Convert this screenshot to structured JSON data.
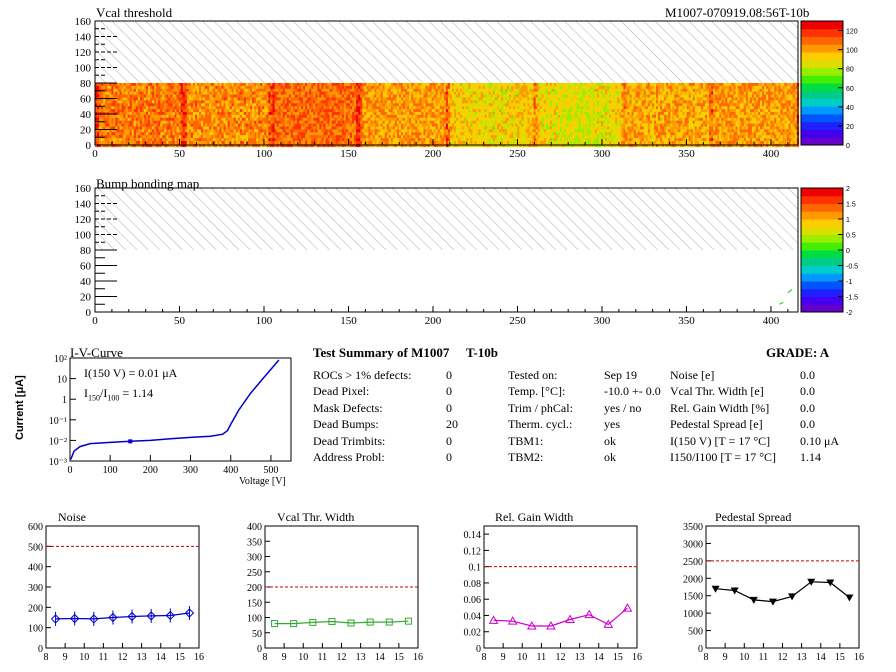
{
  "header": {
    "run_id": "M1007-070919.08:56T-10b"
  },
  "maps": {
    "vcal": {
      "title": "Vcal threshold",
      "x_ticks": [
        "0",
        "50",
        "100",
        "150",
        "200",
        "250",
        "300",
        "350",
        "400"
      ],
      "y_ticks": [
        "0",
        "20",
        "40",
        "60",
        "80",
        "100",
        "120",
        "140",
        "160"
      ],
      "xlim": [
        0,
        416
      ],
      "ylim": [
        0,
        160
      ],
      "active_rows": [
        0,
        80
      ],
      "palette_ticks": [
        "0",
        "20",
        "40",
        "60",
        "80",
        "100",
        "120"
      ],
      "palette_range": [
        0,
        130
      ]
    },
    "bump": {
      "title": "Bump bonding map",
      "x_ticks": [
        "0",
        "50",
        "100",
        "150",
        "200",
        "250",
        "300",
        "350",
        "400"
      ],
      "y_ticks": [
        "0",
        "20",
        "40",
        "60",
        "80",
        "100",
        "120",
        "140",
        "160"
      ],
      "xlim": [
        0,
        416
      ],
      "ylim": [
        0,
        160
      ],
      "palette_ticks": [
        "-2",
        "-1.5",
        "-1",
        "-0.5",
        "0",
        "0.5",
        "1",
        "1.5",
        "2"
      ],
      "palette_range": [
        -2,
        2
      ]
    }
  },
  "iv": {
    "title": "I-V-Curve",
    "ylabel": "Current [μA]",
    "xlabel": "Voltage [V]",
    "annot1": "I(150 V) = 0.01 μA",
    "annot2_main": "I",
    "annot2_sub1": "150",
    "annot2_mid": "/I",
    "annot2_sub2": "100",
    "annot2_val": " =  1.14",
    "x_ticks": [
      "0",
      "100",
      "200",
      "300",
      "400",
      "500"
    ],
    "y_ticks": [
      "10⁻³",
      "10⁻²",
      "10⁻¹",
      "1",
      "10",
      "10²"
    ]
  },
  "summary": {
    "title": "Test Summary of M1007",
    "module": "T-10b",
    "grade": "GRADE:  A",
    "left": [
      {
        "label": "ROCs > 1% defects:",
        "value": "0"
      },
      {
        "label": "Dead Pixel:",
        "value": "0"
      },
      {
        "label": "Mask Defects:",
        "value": "0"
      },
      {
        "label": "Dead Bumps:",
        "value": "20"
      },
      {
        "label": "Dead Trimbits:",
        "value": "0"
      },
      {
        "label": "Address Probl:",
        "value": "0"
      }
    ],
    "middle": [
      {
        "label": "Tested on:",
        "value": "Sep 19"
      },
      {
        "label": "Temp. [°C]:",
        "value": "-10.0 +- 0.0"
      },
      {
        "label": "Trim / phCal:",
        "value": "yes / no"
      },
      {
        "label": "Therm. cycl.:",
        "value": "yes"
      },
      {
        "label": "TBM1:",
        "value": "ok"
      },
      {
        "label": "TBM2:",
        "value": "ok"
      }
    ],
    "right": [
      {
        "label": "Noise [e]",
        "value": "0.0"
      },
      {
        "label": "Vcal Thr. Width [e]",
        "value": "0.0"
      },
      {
        "label": "Rel. Gain Width [%]",
        "value": "0.0"
      },
      {
        "label": "Pedestal Spread [e]",
        "value": "0.0"
      },
      {
        "label": "I(150 V) [T = 17 °C]",
        "value": "0.10 μA"
      },
      {
        "label": "I150/I100   [T = 17 °C]",
        "value": "1.14"
      }
    ]
  },
  "chart_data": [
    {
      "type": "heatmap",
      "title": "Vcal threshold",
      "x_range": [
        0,
        416
      ],
      "y_range": [
        0,
        160
      ],
      "filled_rows": [
        0,
        80
      ],
      "value_range": [
        0,
        130
      ],
      "typical_value": 100,
      "roc_boundaries": [
        52,
        104,
        156,
        208,
        260,
        312,
        364
      ]
    },
    {
      "type": "heatmap",
      "title": "Bump bonding map",
      "x_range": [
        0,
        416
      ],
      "y_range": [
        0,
        160
      ],
      "filled_rows": [
        0,
        80
      ],
      "value_range": [
        -2,
        2
      ]
    },
    {
      "type": "line",
      "title": "I-V-Curve",
      "xlabel": "Voltage [V]",
      "ylabel": "Current [μA]",
      "xlim": [
        0,
        550
      ],
      "y_log": true,
      "ylim": [
        0.001,
        100
      ],
      "x": [
        2,
        10,
        25,
        50,
        100,
        150,
        200,
        250,
        300,
        350,
        380,
        392,
        400,
        420,
        450,
        480,
        520
      ],
      "y": [
        0.0012,
        0.003,
        0.005,
        0.007,
        0.008,
        0.009,
        0.01,
        0.012,
        0.014,
        0.016,
        0.02,
        0.03,
        0.06,
        0.3,
        2,
        10,
        80
      ]
    },
    {
      "type": "line",
      "title": "Noise",
      "x": [
        8.5,
        9.5,
        10.5,
        11.5,
        12.5,
        13.5,
        14.5,
        15.5
      ],
      "y": [
        143,
        145,
        143,
        150,
        155,
        158,
        160,
        172
      ],
      "xlim": [
        8,
        16
      ],
      "ylim": [
        0,
        600
      ],
      "threshold": 500,
      "x_ticks": [
        "8",
        "9",
        "10",
        "11",
        "12",
        "13",
        "14",
        "15",
        "16"
      ],
      "y_ticks": [
        "0",
        "100",
        "200",
        "300",
        "400",
        "500",
        "600"
      ],
      "color": "#0000cc"
    },
    {
      "type": "line",
      "title": "Vcal Thr. Width",
      "x": [
        8.5,
        9.5,
        10.5,
        11.5,
        12.5,
        13.5,
        14.5,
        15.5
      ],
      "y": [
        80,
        80,
        84,
        87,
        82,
        85,
        85,
        88
      ],
      "xlim": [
        8,
        16
      ],
      "ylim": [
        0,
        400
      ],
      "threshold": 200,
      "x_ticks": [
        "8",
        "9",
        "10",
        "11",
        "12",
        "13",
        "14",
        "15",
        "16"
      ],
      "y_ticks": [
        "0",
        "50",
        "100",
        "150",
        "200",
        "250",
        "300",
        "350",
        "400"
      ],
      "color": "#33aa33"
    },
    {
      "type": "line",
      "title": "Rel. Gain Width",
      "x": [
        8.5,
        9.5,
        10.5,
        11.5,
        12.5,
        13.5,
        14.5,
        15.5
      ],
      "y": [
        0.034,
        0.033,
        0.027,
        0.027,
        0.035,
        0.041,
        0.029,
        0.049
      ],
      "xlim": [
        8,
        16
      ],
      "ylim": [
        0,
        0.15
      ],
      "threshold": 0.1,
      "x_ticks": [
        "8",
        "9",
        "10",
        "11",
        "12",
        "13",
        "14",
        "15",
        "16"
      ],
      "y_ticks": [
        "0",
        "0.02",
        "0.04",
        "0.06",
        "0.08",
        "0.1",
        "0.12",
        "0.14"
      ],
      "color": "#cc00cc"
    },
    {
      "type": "line",
      "title": "Pedestal Spread",
      "x": [
        8.5,
        9.5,
        10.5,
        11.5,
        12.5,
        13.5,
        14.5,
        15.5
      ],
      "y": [
        1700,
        1650,
        1380,
        1330,
        1480,
        1900,
        1880,
        1450
      ],
      "xlim": [
        8,
        16
      ],
      "ylim": [
        0,
        3500
      ],
      "threshold": 2500,
      "x_ticks": [
        "8",
        "9",
        "10",
        "11",
        "12",
        "13",
        "14",
        "15",
        "16"
      ],
      "y_ticks": [
        "0",
        "500",
        "1000",
        "1500",
        "2000",
        "2500",
        "3000",
        "3500"
      ],
      "color": "#000000"
    }
  ]
}
